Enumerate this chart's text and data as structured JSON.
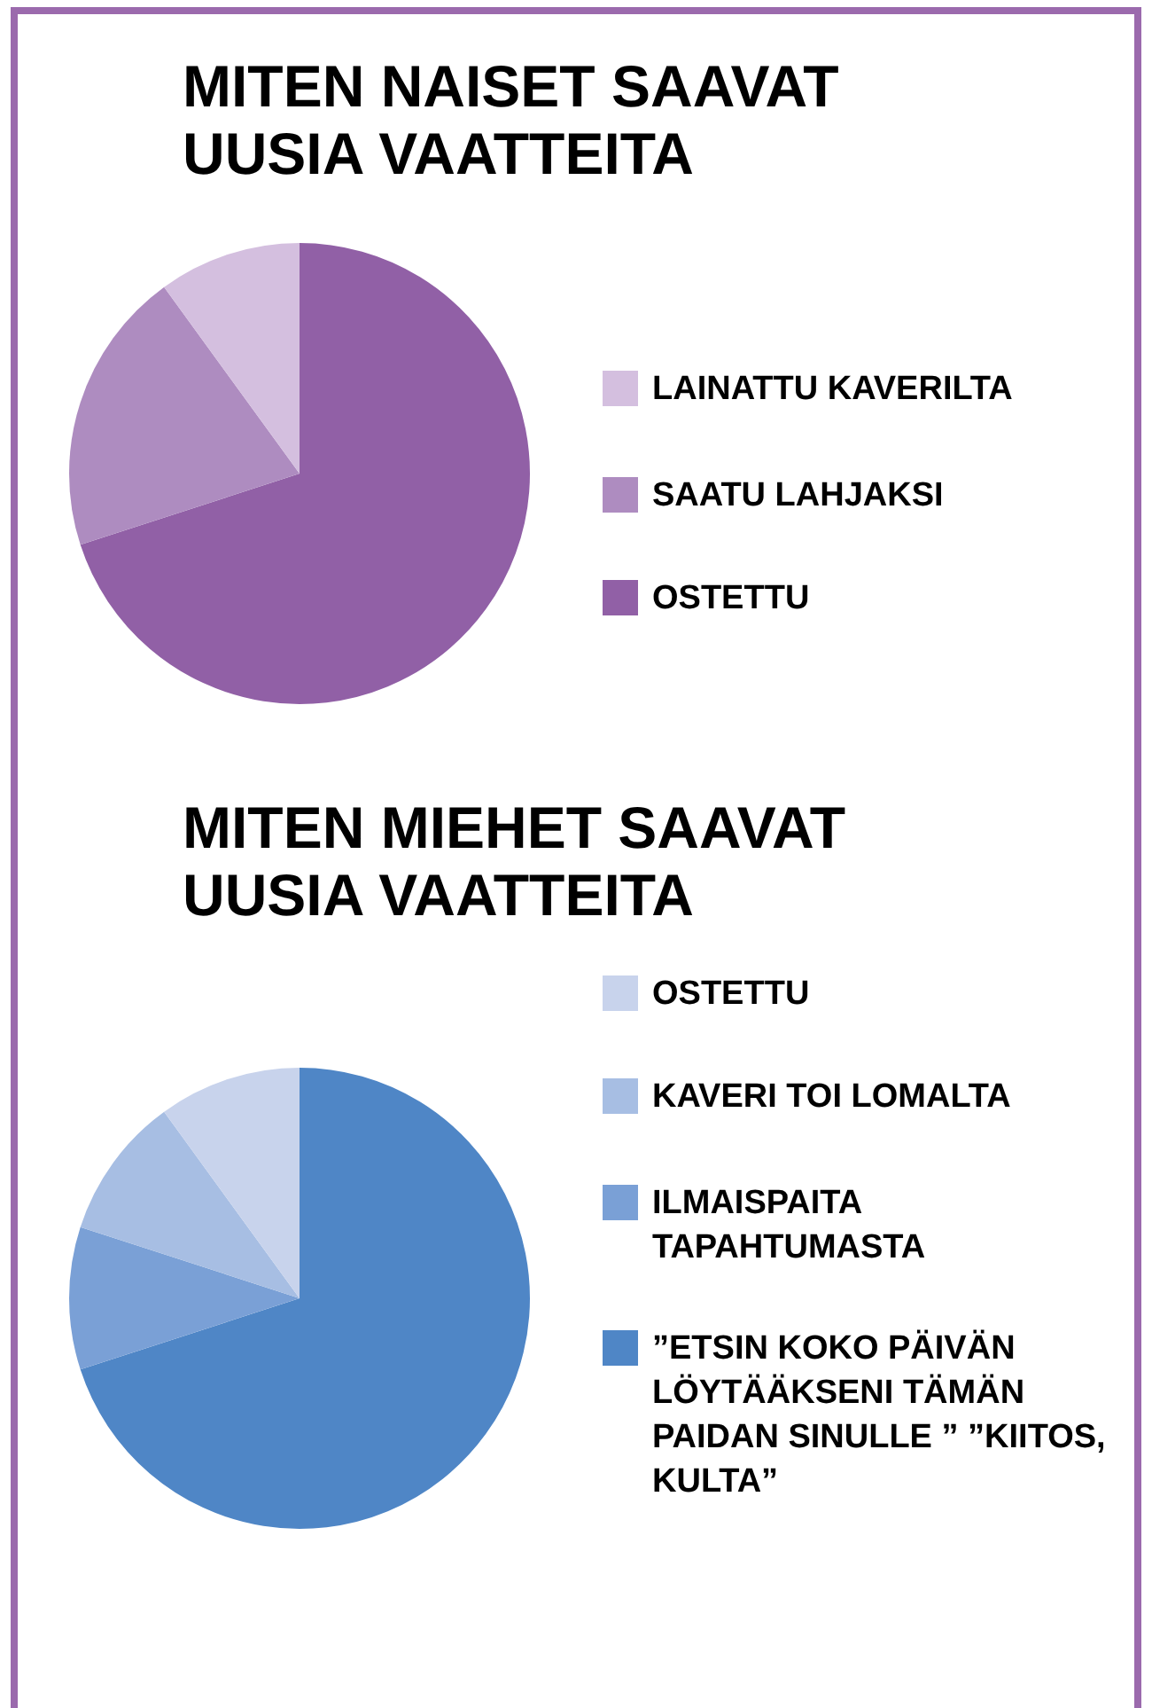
{
  "chart_data": [
    {
      "type": "pie",
      "title": "MITEN NAISET SAAVAT UUSIA VAATTEITA",
      "categories": [
        "LAINATTU  KAVERILTA",
        "SAATU LAHJAKSI",
        "OSTETTU"
      ],
      "values": [
        10,
        20,
        70
      ],
      "colors": [
        "#d4bfdf",
        "#ae8cc0",
        "#9160a6"
      ],
      "legend": "right"
    },
    {
      "type": "pie",
      "title": "MITEN MIEHET SAAVAT UUSIA VAATTEITA",
      "categories": [
        "OSTETTU",
        "KAVERI TOI LOMALTA",
        "ILMAISPAITA TAPAHTUMASTA",
        "”ETSIN KOKO PÄIVÄN LÖYTÄÄKSENI TÄMÄN PAIDAN SINULLE ” ”KIITOS, KULTA”"
      ],
      "values": [
        10,
        10,
        10,
        70
      ],
      "colors": [
        "#c8d3ec",
        "#a7bee3",
        "#7aa0d6",
        "#4f86c6"
      ],
      "legend": "right"
    }
  ]
}
